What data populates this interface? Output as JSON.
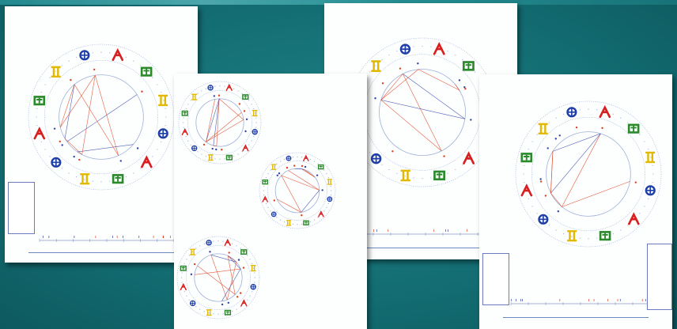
{
  "colors": {
    "background": "#136e73",
    "paper": "#fdfefe",
    "fire": "#d81e1e",
    "earth": "#2b8a2b",
    "air": "#e2b800",
    "water": "#1f3fa8",
    "aspect_hard": "#e04020",
    "aspect_soft": "#3344aa",
    "ring": "#9db1d8"
  },
  "icons": {
    "fire_sign": "aries-glyph",
    "earth_sign": "taurus-glyph",
    "air_sign": "gemini-glyph",
    "water_sign": "cancer-glyph"
  },
  "sheets": [
    {
      "header": {
        "left": [
          "",
          ""
        ],
        "center": [
          "",
          "",
          ""
        ],
        "right": [
          "",
          ""
        ]
      },
      "table": [
        "",
        "",
        "",
        "",
        "",
        "",
        "",
        "",
        "",
        ""
      ],
      "footer": [
        "",
        ""
      ]
    },
    {
      "notes_top": [
        "",
        "",
        "",
        "",
        ""
      ],
      "notes_mid": [
        "",
        "",
        "",
        "",
        "",
        ""
      ],
      "notes_bottom": [
        "",
        "",
        "",
        "",
        ""
      ],
      "footer": [
        "",
        ""
      ]
    },
    {
      "header": {
        "left": [
          "",
          ""
        ],
        "center": [
          "",
          "",
          ""
        ],
        "right": [
          "",
          ""
        ]
      },
      "table": [
        "",
        "",
        "",
        "",
        "",
        "",
        "",
        "",
        "",
        ""
      ],
      "footer": [
        "",
        ""
      ]
    },
    {
      "header": {
        "left": [
          "",
          ""
        ],
        "center": [
          "",
          "",
          ""
        ],
        "right": [
          "",
          ""
        ]
      },
      "table": [
        "",
        "",
        "",
        "",
        "",
        "",
        "",
        "",
        "",
        "",
        "",
        ""
      ],
      "footer": [
        "",
        ""
      ]
    }
  ]
}
